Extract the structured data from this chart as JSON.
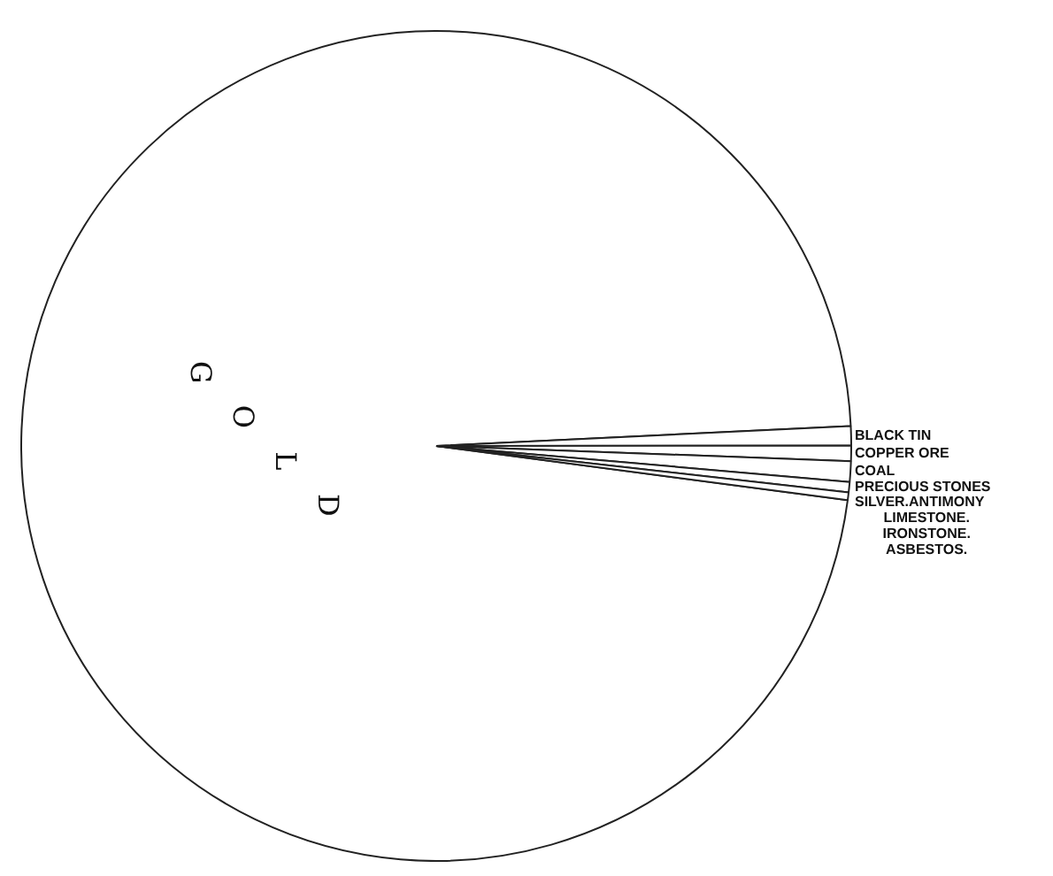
{
  "chart_data": {
    "type": "pie",
    "categories": [
      "GOLD",
      "BLACK TIN",
      "COPPER ORE",
      "COAL",
      "PRECIOUS STONES",
      "SILVER.ANTIMONY\nLIMESTONE.\nIRONSTONE.\nASBESTOS."
    ],
    "values": [
      97.15,
      0.75,
      0.6,
      0.8,
      0.4,
      0.3
    ],
    "colors": [
      "#ffffff",
      "#ffffff",
      "#ffffff",
      "#ffffff",
      "#ffffff",
      "#ffffff"
    ],
    "legend": false
  }
}
